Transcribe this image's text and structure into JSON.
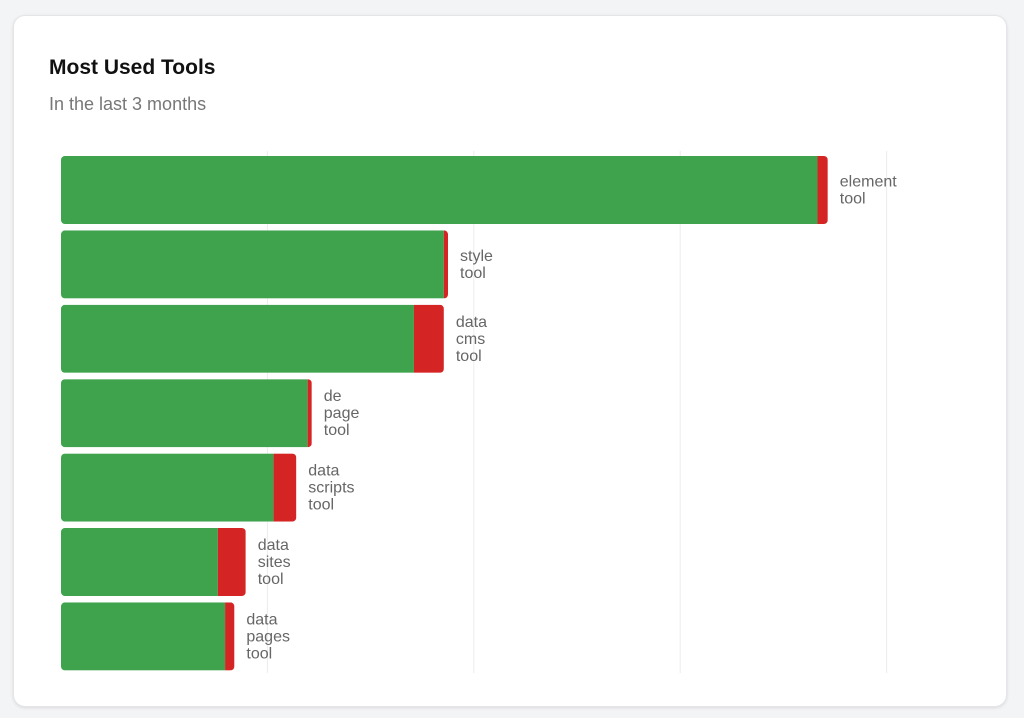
{
  "card": {
    "title": "Most Used Tools",
    "subtitle": "In the last 3 months"
  },
  "chart_data": {
    "type": "bar",
    "orientation": "horizontal",
    "stacked": true,
    "title": "Most Used Tools",
    "subtitle": "In the last 3 months",
    "categories": [
      "element tool",
      "style tool",
      "data cms tool",
      "de page tool",
      "data scripts tool",
      "data sites tool",
      "data pages tool"
    ],
    "series": [
      {
        "values": [
          7.33,
          3.71,
          3.42,
          2.39,
          2.06,
          1.52,
          1.59
        ],
        "color": "#3fa34d"
      },
      {
        "values": [
          0.1,
          0.04,
          0.29,
          0.04,
          0.22,
          0.27,
          0.09
        ],
        "color": "#d42424"
      }
    ],
    "xlim": [
      0,
      8
    ],
    "xgrid_ticks": [
      0,
      2,
      4,
      6,
      8
    ],
    "grid": true,
    "legend": "none",
    "xlabel": "",
    "ylabel": ""
  }
}
